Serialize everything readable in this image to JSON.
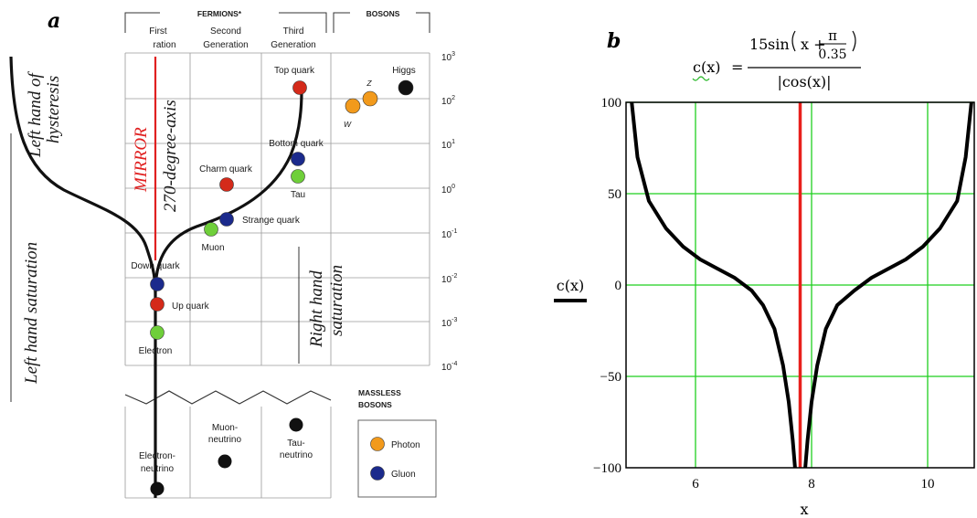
{
  "panel_a": {
    "label": "a",
    "fermions_label": "FERMIONS*",
    "bosons_label": "BOSONS",
    "gen1_line1": "First",
    "gen1_line2": "ration",
    "gen2_line1": "Second",
    "gen2_line2": "Generation",
    "gen3_line1": "Third",
    "gen3_line2": "Generation",
    "mirror_label": "MIRROR",
    "axis_label": "270-degree-axis",
    "left_hysteresis_line1": "Left hand of",
    "left_hysteresis_line2": "hysteresis",
    "left_saturation": "Left hand saturation",
    "right_saturation_line1": "Right hand",
    "right_saturation_line2": "saturation",
    "massless_line1": "MASSLESS",
    "massless_line2": "BOSONS",
    "scale_ticks": [
      {
        "base": "10",
        "exp": "3"
      },
      {
        "base": "10",
        "exp": "2"
      },
      {
        "base": "10",
        "exp": "1"
      },
      {
        "base": "10",
        "exp": "0"
      },
      {
        "base": "10",
        "exp": "-1"
      },
      {
        "base": "10",
        "exp": "-2"
      },
      {
        "base": "10",
        "exp": "-3"
      },
      {
        "base": "10",
        "exp": "-4"
      }
    ],
    "particles": {
      "top_quark": "Top quark",
      "bottom_quark": "Bottom quark",
      "tau": "Tau",
      "charm_quark": "Charm quark",
      "strange_quark": "Strange quark",
      "muon": "Muon",
      "down_quark": "Down quark",
      "up_quark": "Up quark",
      "electron": "Electron",
      "w": "W",
      "z": "Z",
      "higgs": "Higgs",
      "muon_neutrino_line1": "Muon-",
      "muon_neutrino_line2": "neutrino",
      "tau_neutrino_line1": "Tau-",
      "tau_neutrino_line2": "neutrino",
      "electron_neutrino_line1": "Electron-",
      "electron_neutrino_line2": "neutrino"
    },
    "legend": {
      "photon": "Photon",
      "gluon": "Gluon"
    },
    "colors": {
      "quark_red": "#d42a1a",
      "quark_blue": "#1b2a8c",
      "lepton_green": "#6fcf3a",
      "boson_orange": "#f29a1c",
      "neutrino_black": "#111111",
      "mirror_red": "#e02020"
    }
  },
  "panel_b": {
    "label": "b",
    "formula": {
      "lhs": "c(x)",
      "equals": "=",
      "num_coef": "15",
      "num_fn": "sin",
      "num_x": "x +",
      "pi": "π",
      "denom_inner": "0.35",
      "den": "|cos(x)|"
    },
    "ylabel": "c(x)",
    "xlabel": "x",
    "line_color": "#000000",
    "vline_color": "#e8201c",
    "grid_color": "#1fcf1f"
  },
  "chart_data": {
    "type": "line",
    "title": "",
    "xlabel": "x",
    "ylabel": "c(x)",
    "xlim": [
      4.8,
      10.9
    ],
    "ylim": [
      -100,
      100
    ],
    "xticks": [
      "6",
      "8",
      "10"
    ],
    "yticks": [
      "100",
      "50",
      "0",
      "−50",
      "−100"
    ],
    "grid": true,
    "vertical_line_x": 7.85,
    "series": [
      {
        "x": [
          4.9,
          5.0,
          5.2,
          5.5,
          5.8,
          6.1,
          6.4,
          6.7,
          7.0,
          7.2,
          7.4,
          7.55,
          7.65,
          7.72,
          7.76
        ],
        "y": [
          100,
          70,
          46,
          31,
          21,
          14,
          9,
          4,
          -3,
          -11,
          -24,
          -44,
          -64,
          -85,
          -100
        ]
      },
      {
        "x": [
          7.94,
          7.98,
          8.05,
          8.15,
          8.3,
          8.5,
          8.8,
          9.1,
          9.4,
          9.7,
          10.0,
          10.3,
          10.6,
          10.75,
          10.85
        ],
        "y": [
          -100,
          -85,
          -64,
          -44,
          -24,
          -11,
          -3,
          4,
          9,
          14,
          21,
          31,
          46,
          70,
          100
        ]
      }
    ]
  }
}
